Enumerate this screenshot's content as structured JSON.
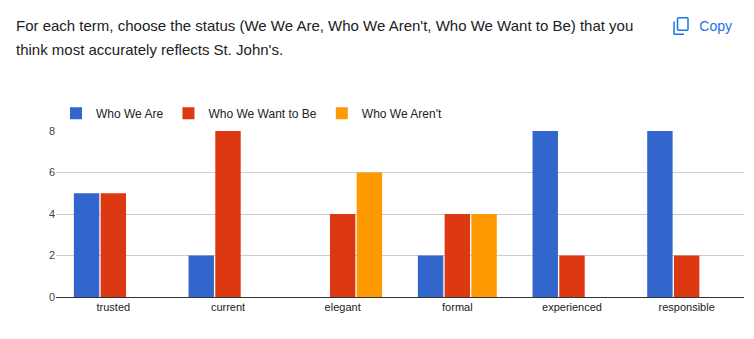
{
  "chart_data": {
    "type": "bar",
    "title": "For each term, choose the status (We We Are, Who We Aren't, Who We Want to Be) that you think most accurately reflects St. John's.",
    "annotations": [
      "Copy"
    ],
    "categories": [
      "trusted",
      "current",
      "elegant",
      "formal",
      "experienced",
      "responsible"
    ],
    "series": [
      {
        "name": "Who We Are",
        "color": "#3366cc",
        "values": [
          5,
          2,
          0,
          2,
          8,
          8
        ]
      },
      {
        "name": "Who We Want to Be",
        "color": "#dc3912",
        "values": [
          5,
          8,
          4,
          4,
          2,
          2
        ]
      },
      {
        "name": "Who We Aren't",
        "color": "#ff9900",
        "values": [
          0,
          0,
          6,
          4,
          0,
          0
        ]
      }
    ],
    "ylim": [
      0,
      8
    ],
    "yticks": [
      0,
      2,
      4,
      6,
      8
    ],
    "grid": true,
    "legend": "top-left"
  }
}
